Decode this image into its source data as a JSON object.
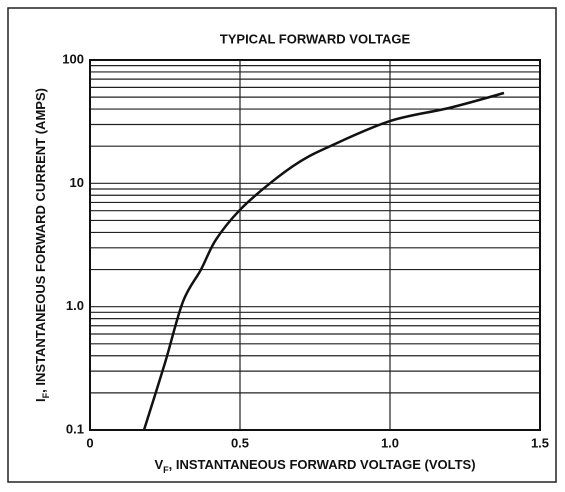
{
  "chart_data": {
    "type": "line",
    "title": "TYPICAL FORWARD VOLTAGE",
    "x_label": {
      "symbol": "V",
      "subscript": "F",
      "text": ", INSTANTANEOUS FORWARD VOLTAGE (VOLTS)"
    },
    "y_label": {
      "symbol": "I",
      "subscript": "F",
      "text": ", INSTANTANEOUS FORWARD CURRENT (AMPS)"
    },
    "x": [
      0.18,
      0.25,
      0.31,
      0.37,
      0.42,
      0.5,
      0.6,
      0.7,
      0.8,
      1.0,
      1.2,
      1.38
    ],
    "series": [
      {
        "color": "#111111",
        "values": [
          0.1,
          0.35,
          1.1,
          2.0,
          3.5,
          6.1,
          10,
          15,
          20,
          32,
          41,
          54
        ]
      }
    ],
    "xlim": [
      0,
      1.5
    ],
    "xticks": [
      0,
      0.5,
      {
        "value": 1,
        "label": "1.0"
      },
      1.5
    ],
    "ylim": [
      0.1,
      100
    ],
    "yticks": [
      0.1,
      {
        "value": 1,
        "label": "1.0"
      },
      10,
      100
    ],
    "yminor": [
      0.2,
      0.3,
      0.4,
      0.5,
      0.6,
      0.7,
      0.8,
      0.9,
      2,
      3,
      4,
      5,
      6,
      7,
      8,
      9,
      20,
      30,
      40,
      50,
      60,
      70,
      80,
      90
    ],
    "log_y": true,
    "grid": true
  }
}
